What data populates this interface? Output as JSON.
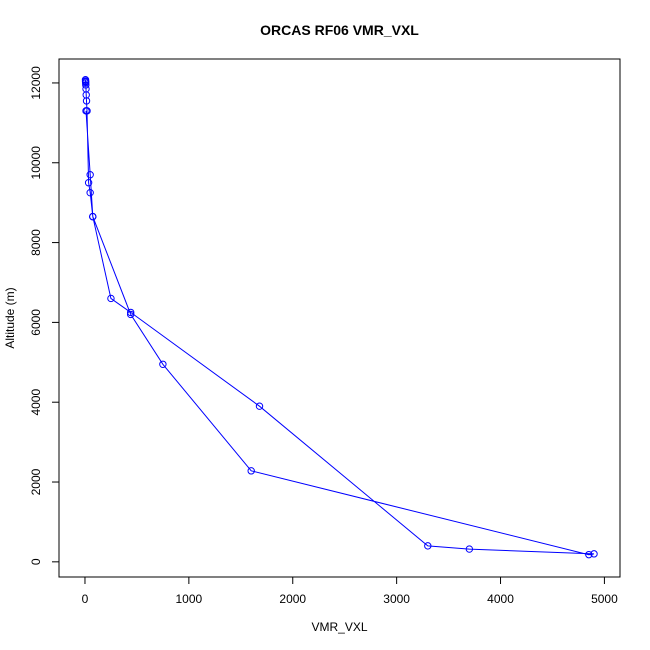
{
  "chart_data": {
    "type": "line",
    "title": "ORCAS RF06 VMR_VXL",
    "xlabel": "VMR_VXL",
    "ylabel": "Altitude (m)",
    "xlim": [
      -250,
      5150
    ],
    "ylim": [
      -380,
      12600
    ],
    "xticks": [
      0,
      1000,
      2000,
      3000,
      4000,
      5000
    ],
    "yticks": [
      0,
      2000,
      4000,
      6000,
      8000,
      10000,
      12000
    ],
    "grid": false,
    "markers": "open-circle",
    "series_color": "#0000ff",
    "series": [
      {
        "x": [
          5,
          6,
          6,
          7,
          8,
          10,
          12,
          15,
          20,
          35,
          50,
          75,
          250,
          440,
          1680,
          3300,
          3700,
          4900,
          4850,
          1600,
          750,
          440,
          75,
          50,
          10
        ],
        "y": [
          12080,
          12050,
          12030,
          12000,
          11950,
          11850,
          11700,
          11550,
          11300,
          9500,
          9250,
          8650,
          6600,
          6250,
          3900,
          400,
          320,
          200,
          180,
          2280,
          4950,
          6200,
          8650,
          9700,
          11300
        ]
      }
    ]
  }
}
